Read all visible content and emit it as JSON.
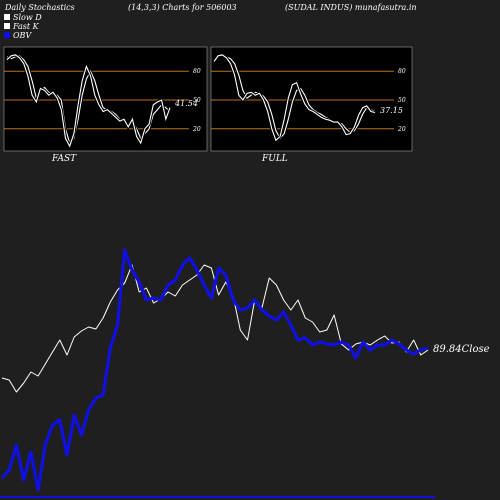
{
  "header": {
    "title": "Daily Stochastics",
    "params": "(14,3,3) Charts for 506003",
    "source": "(SUDAL INDUS) munafasutra.in"
  },
  "legend": [
    {
      "label": "Slow  D",
      "color": "#ffffff"
    },
    {
      "label": "Fast K",
      "color": "#ffffff"
    },
    {
      "label": "OBV",
      "color": "#1010e0"
    }
  ],
  "colors": {
    "background": "#1f1f1f",
    "panel": "#000000",
    "level_line": "#b8741a",
    "price": "#ffffff",
    "obv": "#1010e0"
  },
  "chart_data": [
    {
      "type": "line",
      "panel": "FAST",
      "levels": [
        "80",
        "50",
        "20"
      ],
      "level_values": [
        80,
        50,
        20
      ],
      "ylim": [
        0,
        100
      ],
      "last_value_label": "41.54",
      "series": [
        {
          "name": "Slow  D",
          "values": [
            95,
            93,
            95,
            96,
            92,
            85,
            70,
            52,
            60,
            63,
            58,
            56,
            55,
            50,
            20,
            5,
            10,
            30,
            55,
            72,
            80,
            70,
            55,
            42,
            40,
            38,
            35,
            30,
            28,
            25,
            28,
            20,
            10,
            15,
            20,
            35,
            40,
            45,
            42,
            38
          ]
        },
        {
          "name": "Fast K",
          "values": [
            92,
            96,
            97,
            94,
            88,
            75,
            55,
            48,
            62,
            60,
            55,
            58,
            52,
            40,
            10,
            2,
            15,
            45,
            70,
            85,
            75,
            55,
            45,
            38,
            40,
            36,
            32,
            28,
            30,
            22,
            30,
            12,
            5,
            20,
            25,
            45,
            48,
            50,
            30,
            42
          ]
        }
      ]
    },
    {
      "type": "line",
      "panel": "FULL",
      "levels": [
        "80",
        "50",
        "20"
      ],
      "level_values": [
        80,
        50,
        20
      ],
      "ylim": [
        0,
        100
      ],
      "last_value_label": "37.15",
      "series": [
        {
          "name": "Slow  D",
          "values": [
            92,
            95,
            96,
            95,
            93,
            88,
            76,
            60,
            52,
            55,
            58,
            57,
            54,
            48,
            35,
            18,
            10,
            15,
            30,
            48,
            60,
            62,
            55,
            45,
            40,
            37,
            35,
            32,
            30,
            28,
            27,
            25,
            20,
            16,
            18,
            25,
            35,
            42,
            40,
            38
          ]
        },
        {
          "name": "Fast K",
          "values": [
            90,
            96,
            97,
            94,
            88,
            76,
            55,
            50,
            57,
            58,
            55,
            57,
            50,
            38,
            20,
            8,
            12,
            30,
            52,
            66,
            68,
            56,
            46,
            40,
            38,
            35,
            32,
            30,
            29,
            27,
            27,
            22,
            14,
            15,
            22,
            34,
            42,
            44,
            38,
            37
          ]
        }
      ]
    },
    {
      "type": "line",
      "panel": "price-obv",
      "close_label": "89.84Close",
      "series": [
        {
          "name": "price",
          "values": [
            378,
            380,
            392,
            383,
            372,
            376,
            364,
            352,
            340,
            355,
            337,
            331,
            327,
            329,
            318,
            302,
            290,
            283,
            265,
            292,
            288,
            303,
            299,
            292,
            296,
            285,
            280,
            275,
            265,
            268,
            295,
            282,
            296,
            330,
            340,
            300,
            308,
            278,
            285,
            300,
            310,
            300,
            318,
            322,
            332,
            330,
            315,
            344,
            350,
            344,
            342,
            345,
            340,
            336,
            343,
            342,
            352,
            340,
            355,
            350
          ]
        },
        {
          "name": "OBV",
          "values": [
            478,
            470,
            445,
            480,
            452,
            490,
            445,
            425,
            420,
            455,
            415,
            435,
            410,
            398,
            395,
            348,
            325,
            250,
            270,
            282,
            300,
            298,
            300,
            285,
            280,
            265,
            258,
            270,
            285,
            298,
            268,
            275,
            300,
            310,
            308,
            300,
            310,
            316,
            320,
            312,
            325,
            340,
            338,
            345,
            342,
            344,
            345,
            342,
            345,
            358,
            342,
            350,
            345,
            345,
            340,
            344,
            350,
            354,
            350,
            348
          ]
        }
      ]
    }
  ]
}
